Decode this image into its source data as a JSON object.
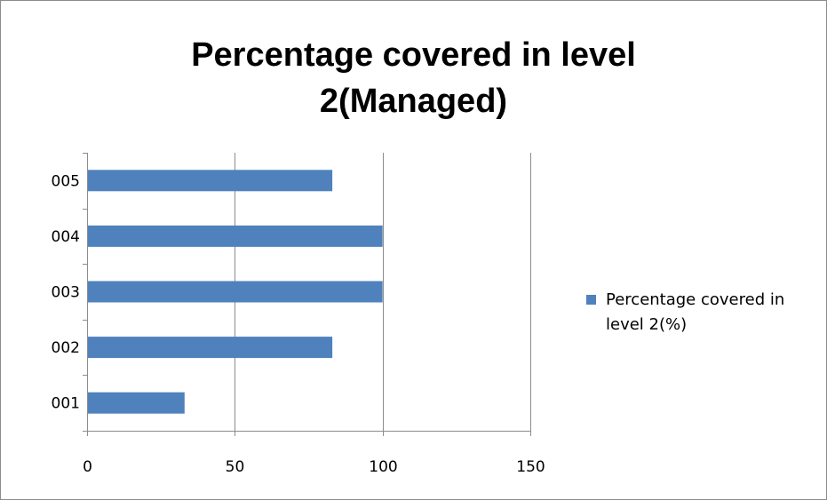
{
  "chart_data": {
    "type": "bar",
    "orientation": "horizontal",
    "title": "Percentage covered in level 2(Managed)",
    "title_lines": [
      "Percentage covered in level",
      "2(Managed)"
    ],
    "categories": [
      "001",
      "002",
      "003",
      "004",
      "005"
    ],
    "series": [
      {
        "name": "Percentage covered in level 2(%)",
        "values": [
          33,
          83,
          100,
          100,
          83
        ],
        "color": "#4f81bd"
      }
    ],
    "xlim": [
      0,
      150
    ],
    "xticks": [
      0,
      50,
      100,
      150
    ],
    "xlabel": "",
    "ylabel": "",
    "grid": true,
    "legend_position": "right"
  }
}
